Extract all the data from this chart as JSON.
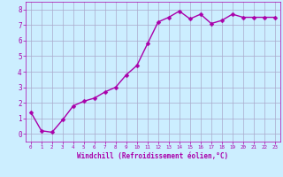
{
  "x": [
    0,
    1,
    2,
    3,
    4,
    5,
    6,
    7,
    8,
    9,
    10,
    11,
    12,
    13,
    14,
    15,
    16,
    17,
    18,
    19,
    20,
    21,
    22,
    23
  ],
  "y": [
    1.4,
    0.2,
    0.1,
    0.9,
    1.8,
    2.1,
    2.3,
    2.7,
    3.0,
    3.8,
    4.4,
    5.8,
    7.2,
    7.5,
    7.9,
    7.4,
    7.7,
    7.1,
    7.3,
    7.7,
    7.5,
    7.5,
    7.5,
    7.5
  ],
  "line_color": "#aa00aa",
  "marker_color": "#aa00aa",
  "bg_color": "#cceeff",
  "grid_color": "#aaaacc",
  "xlabel": "Windchill (Refroidissement éolien,°C)",
  "xlabel_color": "#aa00aa",
  "tick_color": "#aa00aa",
  "xlim": [
    -0.5,
    23.5
  ],
  "ylim": [
    -0.5,
    8.5
  ],
  "yticks": [
    0,
    1,
    2,
    3,
    4,
    5,
    6,
    7,
    8
  ],
  "xticks": [
    0,
    1,
    2,
    3,
    4,
    5,
    6,
    7,
    8,
    9,
    10,
    11,
    12,
    13,
    14,
    15,
    16,
    17,
    18,
    19,
    20,
    21,
    22,
    23
  ],
  "xtick_labels": [
    "0",
    "1",
    "2",
    "3",
    "4",
    "5",
    "6",
    "7",
    "8",
    "9",
    "10",
    "11",
    "12",
    "13",
    "14",
    "15",
    "16",
    "17",
    "18",
    "19",
    "20",
    "21",
    "22",
    "23"
  ],
  "marker_size": 2.5,
  "line_width": 1.0
}
